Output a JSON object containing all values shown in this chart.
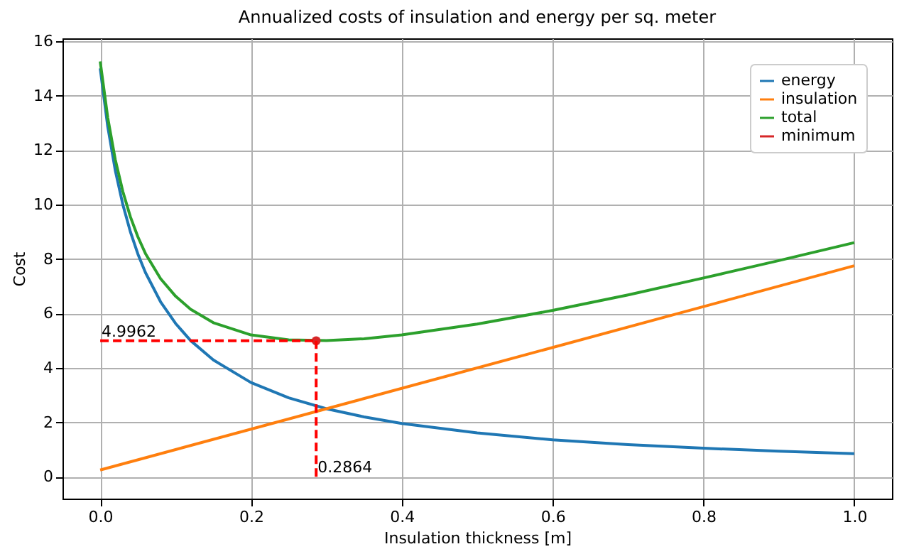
{
  "chart_data": {
    "type": "line",
    "title": "Annualized costs of insulation and energy per sq. meter",
    "xlabel": "Insulation thickness [m]",
    "ylabel": "Cost",
    "xlim": [
      -0.05,
      1.05
    ],
    "ylim": [
      -0.8,
      16.1
    ],
    "xticks": [
      {
        "value": 0,
        "label": "0.0"
      },
      {
        "value": 0.2,
        "label": "0.2"
      },
      {
        "value": 0.4,
        "label": "0.4"
      },
      {
        "value": 0.6,
        "label": "0.6"
      },
      {
        "value": 0.8,
        "label": "0.8"
      },
      {
        "value": 1,
        "label": "1.0"
      }
    ],
    "yticks": [
      0,
      2,
      4,
      6,
      8,
      10,
      12,
      14,
      16
    ],
    "grid": true,
    "legend": "top right",
    "series": [
      {
        "name": "energy",
        "color": "#1f77b4",
        "x": [
          0,
          0.01,
          0.02,
          0.03,
          0.04,
          0.05,
          0.06,
          0.08,
          0.1,
          0.12,
          0.15,
          0.2,
          0.25,
          0.3,
          0.35,
          0.4,
          0.5,
          0.6,
          0.7,
          0.8,
          0.9,
          1.0
        ],
        "values": [
          15.0,
          12.86,
          11.25,
          10.0,
          9.0,
          8.18,
          7.5,
          6.43,
          5.63,
          5.0,
          4.29,
          3.46,
          2.9,
          2.5,
          2.2,
          1.96,
          1.61,
          1.36,
          1.18,
          1.05,
          0.94,
          0.85
        ]
      },
      {
        "name": "insulation",
        "color": "#ff7f0e",
        "x": [
          0,
          1.0
        ],
        "values": [
          0.25,
          7.75
        ]
      },
      {
        "name": "total",
        "color": "#2ca02c",
        "x": [
          0,
          0.01,
          0.02,
          0.03,
          0.04,
          0.05,
          0.06,
          0.08,
          0.1,
          0.12,
          0.15,
          0.2,
          0.25,
          0.3,
          0.35,
          0.4,
          0.5,
          0.6,
          0.7,
          0.8,
          0.9,
          1.0
        ],
        "values": [
          15.25,
          13.19,
          11.65,
          10.48,
          9.55,
          8.81,
          8.2,
          7.28,
          6.63,
          6.15,
          5.66,
          5.21,
          5.03,
          5.0,
          5.07,
          5.21,
          5.61,
          6.11,
          6.68,
          7.3,
          7.94,
          8.6
        ]
      },
      {
        "name": "minimum",
        "color": "#d62728",
        "type": "scatter",
        "marker": "circle",
        "x": [
          0.2864
        ],
        "values": [
          4.9962
        ]
      },
      {
        "color": "#ff0000",
        "line_style": "dashed",
        "x": [
          0,
          0.2864
        ],
        "values": [
          4.9962,
          4.9962
        ]
      },
      {
        "color": "#ff0000",
        "line_style": "dashed",
        "x": [
          0.2864,
          0.2864
        ],
        "values": [
          0,
          4.9962
        ]
      }
    ],
    "annotations": [
      {
        "text": "4.9962",
        "x": 0,
        "y": 4.9962
      },
      {
        "text": "0.2864",
        "x": 0.2864,
        "y": 0
      }
    ]
  }
}
